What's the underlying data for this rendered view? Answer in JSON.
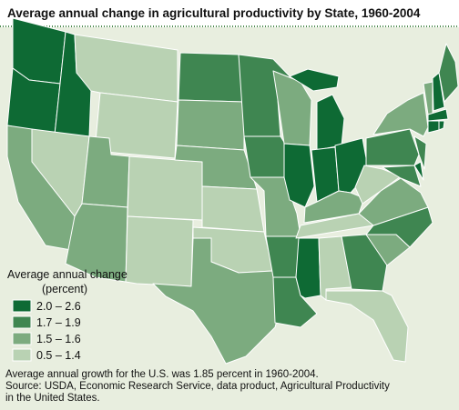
{
  "title": "Average annual change in agricultural productivity by State, 1960-2004",
  "legend": {
    "title": "Average annual change",
    "subtitle": "(percent)",
    "items": [
      {
        "label": "2.0 – 2.6",
        "color": "#0e6a34"
      },
      {
        "label": "1.7 – 1.9",
        "color": "#3f8651"
      },
      {
        "label": "1.5 – 1.6",
        "color": "#7cab7f"
      },
      {
        "label": "0.5 – 1.4",
        "color": "#b9d2b3"
      }
    ]
  },
  "state_classes": [
    0,
    0,
    0,
    3,
    3,
    3,
    2,
    2,
    2,
    3,
    3,
    1,
    2,
    2,
    3,
    3,
    2,
    1,
    1,
    2,
    1,
    1,
    2,
    0,
    0,
    0,
    0,
    2,
    3,
    0,
    3,
    1,
    3,
    2,
    1,
    2,
    3,
    1,
    0,
    1,
    1,
    2,
    2,
    0,
    1,
    0,
    0,
    0
  ],
  "notes": [
    "Average annual growth for the U.S. was 1.85 percent in 1960-2004.",
    "Source: USDA, Economic Research Service, data product, Agricultural Productivity",
    "in the United States."
  ]
}
